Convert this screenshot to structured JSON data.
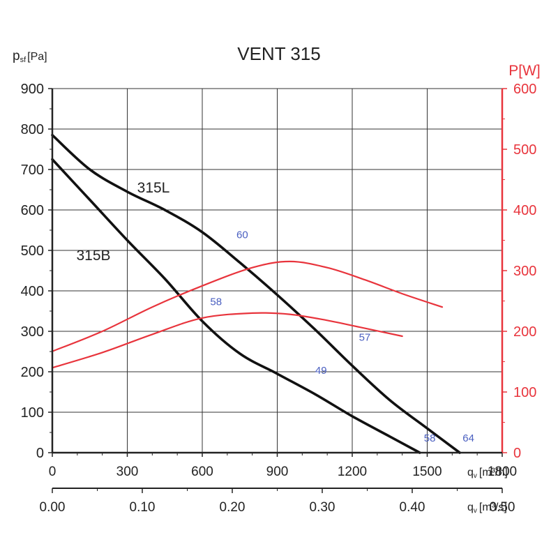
{
  "chart_data": {
    "type": "line",
    "title": "VENT 315",
    "ylabel_left": {
      "main": "p",
      "sub": "sf",
      "unit": "[Pa]"
    },
    "ylabel_right": "P[W]",
    "xlabel_top": {
      "main": "q",
      "sub": "v",
      "unit": "[m³/h]"
    },
    "xlabel_bottom": {
      "main": "q",
      "sub": "v",
      "unit": "[m³/s]"
    },
    "xlim": [
      0,
      1800
    ],
    "ylim_left": [
      0,
      900
    ],
    "ylim_right": [
      0,
      600
    ],
    "x_ticks": [
      "0",
      "300",
      "600",
      "900",
      "1200",
      "1500",
      "1800"
    ],
    "x_ticks_m3s": [
      "0.00",
      "0.10",
      "0.20",
      "0.30",
      "0.40",
      "0.50"
    ],
    "y_ticks_left": [
      "0",
      "100",
      "200",
      "300",
      "400",
      "500",
      "600",
      "700",
      "800",
      "900"
    ],
    "y_ticks_right": [
      "0",
      "100",
      "200",
      "300",
      "400",
      "500",
      "600"
    ],
    "grid": true,
    "colors": {
      "pressure": "#111111",
      "power": "#e8343c",
      "noise": "#4a5fc0",
      "axis": "#222222"
    },
    "series": [
      {
        "name": "315L",
        "axis": "left",
        "kind": "pressure",
        "x": [
          0,
          150,
          300,
          450,
          600,
          750,
          900,
          1050,
          1200,
          1350,
          1500,
          1630
        ],
        "y": [
          785,
          700,
          645,
          600,
          545,
          470,
          390,
          305,
          215,
          130,
          60,
          0
        ]
      },
      {
        "name": "315B",
        "axis": "left",
        "kind": "pressure",
        "x": [
          0,
          150,
          300,
          450,
          600,
          750,
          900,
          1050,
          1200,
          1350,
          1470
        ],
        "y": [
          725,
          625,
          525,
          430,
          325,
          245,
          195,
          145,
          90,
          40,
          0
        ]
      },
      {
        "axis": "right",
        "kind": "power",
        "x": [
          0,
          200,
          400,
          600,
          800,
          950,
          1100,
          1250,
          1400,
          1560
        ],
        "y": [
          167,
          200,
          240,
          275,
          305,
          315,
          305,
          285,
          262,
          240
        ]
      },
      {
        "axis": "right",
        "kind": "power",
        "x": [
          0,
          200,
          400,
          600,
          800,
          950,
          1100,
          1250,
          1400
        ],
        "y": [
          140,
          165,
          195,
          222,
          230,
          228,
          218,
          205,
          192
        ]
      }
    ],
    "annotations": [
      {
        "text": "60",
        "x": 760,
        "y": 530
      },
      {
        "text": "58",
        "x": 655,
        "y": 365
      },
      {
        "text": "57",
        "x": 1250,
        "y": 277
      },
      {
        "text": "49",
        "x": 1075,
        "y": 195
      },
      {
        "text": "58",
        "x": 1510,
        "y": 28
      },
      {
        "text": "64",
        "x": 1665,
        "y": 28
      }
    ]
  }
}
